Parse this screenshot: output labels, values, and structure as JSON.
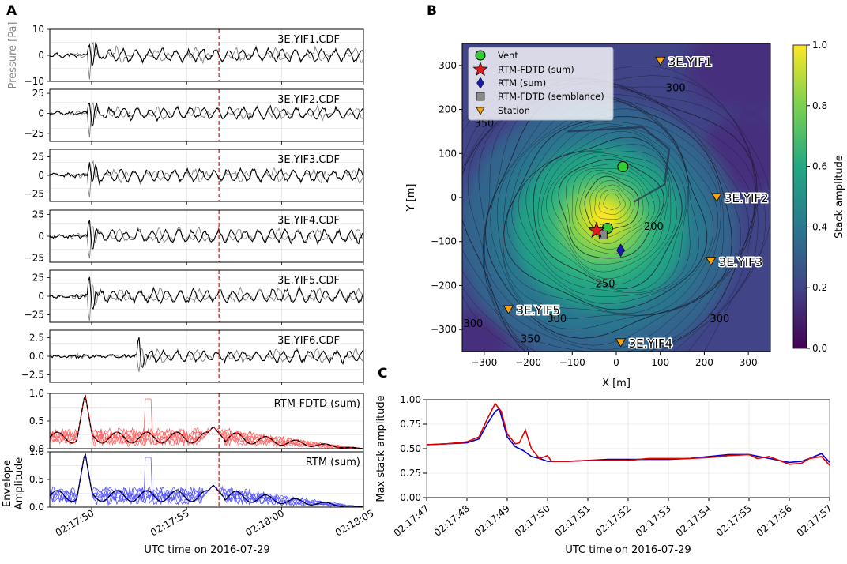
{
  "figure": {
    "panel_labels": [
      "A",
      "B",
      "C"
    ],
    "colors": {
      "black": "#000000",
      "gray": "#808080",
      "red_line": "#e00000",
      "light_red": "#ff6666",
      "blue_line": "#0000cc",
      "light_blue": "#5a5aff",
      "dashed_red": "#d00000",
      "vent": "#33cc33",
      "star": "#e41a1c",
      "diamond": "#1a1aaa",
      "square": "#888888",
      "station": "#f5a30f"
    }
  },
  "chart_data": [
    {
      "id": "A-waveforms",
      "type": "line",
      "panel": "A",
      "xlabel": "UTC time on 2016-07-29",
      "ylabel_top": "Pressure [Pa]",
      "ylabel_bottom": "Envelope\nAmplitude",
      "x_range_s": [
        0,
        16.5
      ],
      "x_ticks": [
        {
          "t": 2.2,
          "label": "02:17:50"
        },
        {
          "t": 7.2,
          "label": "02:17:55"
        },
        {
          "t": 12.2,
          "label": "02:18:00"
        },
        {
          "t": 17.2,
          "label": "02:18:05"
        }
      ],
      "dashed_time_s": 8.9,
      "traces": [
        {
          "name": "3E.YIF1.CDF",
          "ylim": [
            -10,
            10
          ],
          "yticks": [
            "10",
            "0",
            "−10"
          ],
          "peak": 9,
          "seed": 11,
          "onset": 2.0
        },
        {
          "name": "3E.YIF2.CDF",
          "ylim": [
            -35,
            30
          ],
          "yticks": [
            "25",
            "0",
            "−25"
          ],
          "peak": 28,
          "seed": 23,
          "onset": 2.0
        },
        {
          "name": "3E.YIF3.CDF",
          "ylim": [
            -35,
            35
          ],
          "yticks": [
            "25",
            "0",
            "−25"
          ],
          "peak": 30,
          "seed": 37,
          "onset": 2.0
        },
        {
          "name": "3E.YIF4.CDF",
          "ylim": [
            -30,
            30
          ],
          "yticks": [
            "25",
            "0",
            "−25"
          ],
          "peak": 26,
          "seed": 41,
          "onset": 2.0
        },
        {
          "name": "3E.YIF5.CDF",
          "ylim": [
            -35,
            35
          ],
          "yticks": [
            "25",
            "0",
            "−25"
          ],
          "peak": 32,
          "seed": 53,
          "onset": 2.0
        },
        {
          "name": "3E.YIF6.CDF",
          "ylim": [
            -3.5,
            3.5
          ],
          "yticks": [
            "2.5",
            "0.0",
            "−2.5"
          ],
          "peak": 2.8,
          "seed": 67,
          "onset": 4.6
        }
      ],
      "envelopes": [
        {
          "name": "RTM-FDTD (sum)",
          "ylim": [
            0,
            1.0
          ],
          "yticks": [
            "1.0",
            "0.5",
            "0.0"
          ],
          "color": "red"
        },
        {
          "name": "RTM (sum)",
          "ylim": [
            0,
            1.0
          ],
          "yticks": [
            "1.0",
            "0.5",
            "0.0"
          ],
          "color": "blue"
        }
      ]
    },
    {
      "id": "B-map",
      "type": "heatmap",
      "panel": "B",
      "xlabel": "X [m]",
      "ylabel": "Y [m]",
      "xlim": [
        -350,
        350
      ],
      "ylim": [
        -350,
        350
      ],
      "x_ticks": [
        "−300",
        "−200",
        "−100",
        "0",
        "100",
        "200",
        "300"
      ],
      "y_ticks": [
        "300",
        "200",
        "100",
        "0",
        "−100",
        "−200",
        "−300"
      ],
      "colorbar": {
        "label": "Stack amplitude",
        "range": [
          0.0,
          1.0
        ],
        "ticks": [
          "1.0",
          "0.8",
          "0.6",
          "0.4",
          "0.2",
          "0.0"
        ]
      },
      "legend": [
        "Vent",
        "RTM-FDTD (sum)",
        "RTM (sum)",
        "RTM-FDTD (semblance)",
        "Station"
      ],
      "markers": {
        "vent": [
          {
            "x": 15,
            "y": 70
          },
          {
            "x": -20,
            "y": -70
          }
        ],
        "rtm_fdtd_sum": {
          "x": -45,
          "y": -75
        },
        "rtm_sum": {
          "x": 10,
          "y": -120
        },
        "rtm_fdtd_semblance": {
          "x": -30,
          "y": -85
        }
      },
      "stations": [
        {
          "name": "3E.YIF1",
          "x": 100,
          "y": 310
        },
        {
          "name": "3E.YIF2",
          "x": 228,
          "y": 0
        },
        {
          "name": "3E.YIF3",
          "x": 215,
          "y": -145
        },
        {
          "name": "3E.YIF4",
          "x": 10,
          "y": -330
        },
        {
          "name": "3E.YIF5",
          "x": -245,
          "y": -255
        }
      ],
      "contour_labels": [
        {
          "text": "300",
          "x": 135,
          "y": 250
        },
        {
          "text": "350",
          "x": -300,
          "y": 170
        },
        {
          "text": "200",
          "x": 85,
          "y": -65
        },
        {
          "text": "250",
          "x": -25,
          "y": -195
        },
        {
          "text": "300",
          "x": -135,
          "y": -275
        },
        {
          "text": "350",
          "x": -195,
          "y": -320
        },
        {
          "text": "300",
          "x": 235,
          "y": -275
        },
        {
          "text": "300",
          "x": -325,
          "y": -285
        }
      ],
      "source_max": {
        "x": -40,
        "y": -80
      }
    },
    {
      "id": "C-maxstack",
      "type": "line",
      "panel": "C",
      "xlabel": "UTC time on 2016-07-29",
      "ylabel": "Max stack amplitude",
      "ylim": [
        0.0,
        1.0
      ],
      "yticks": [
        "1.00",
        "0.75",
        "0.50",
        "0.25",
        "0.00"
      ],
      "x_ticks": [
        "02:17:47",
        "02:17:48",
        "02:17:49",
        "02:17:50",
        "02:17:51",
        "02:17:52",
        "02:17:53",
        "02:17:54",
        "02:17:55",
        "02:17:56",
        "02:17:57"
      ],
      "series": [
        {
          "name": "red",
          "color": "#e00000",
          "points": [
            [
              0,
              0.54
            ],
            [
              0.5,
              0.55
            ],
            [
              1.0,
              0.57
            ],
            [
              1.3,
              0.62
            ],
            [
              1.5,
              0.8
            ],
            [
              1.7,
              0.96
            ],
            [
              1.85,
              0.88
            ],
            [
              2.0,
              0.65
            ],
            [
              2.2,
              0.55
            ],
            [
              2.3,
              0.56
            ],
            [
              2.45,
              0.69
            ],
            [
              2.6,
              0.5
            ],
            [
              2.8,
              0.4
            ],
            [
              3.0,
              0.43
            ],
            [
              3.1,
              0.37
            ],
            [
              3.5,
              0.37
            ],
            [
              4.0,
              0.38
            ],
            [
              4.5,
              0.38
            ],
            [
              5.0,
              0.38
            ],
            [
              5.5,
              0.4
            ],
            [
              6.0,
              0.4
            ],
            [
              6.5,
              0.4
            ],
            [
              7.0,
              0.41
            ],
            [
              7.5,
              0.43
            ],
            [
              8.0,
              0.44
            ],
            [
              8.2,
              0.4
            ],
            [
              8.5,
              0.42
            ],
            [
              9.0,
              0.34
            ],
            [
              9.3,
              0.35
            ],
            [
              9.5,
              0.4
            ],
            [
              9.8,
              0.42
            ],
            [
              10.0,
              0.33
            ]
          ]
        },
        {
          "name": "blue",
          "color": "#0000cc",
          "points": [
            [
              0,
              0.54
            ],
            [
              0.5,
              0.55
            ],
            [
              1.0,
              0.56
            ],
            [
              1.3,
              0.6
            ],
            [
              1.5,
              0.75
            ],
            [
              1.7,
              0.88
            ],
            [
              1.8,
              0.91
            ],
            [
              2.0,
              0.62
            ],
            [
              2.2,
              0.52
            ],
            [
              2.4,
              0.48
            ],
            [
              2.6,
              0.42
            ],
            [
              2.8,
              0.4
            ],
            [
              3.0,
              0.37
            ],
            [
              3.5,
              0.37
            ],
            [
              4.0,
              0.38
            ],
            [
              4.5,
              0.39
            ],
            [
              5.0,
              0.39
            ],
            [
              5.5,
              0.39
            ],
            [
              6.0,
              0.39
            ],
            [
              6.5,
              0.4
            ],
            [
              7.0,
              0.42
            ],
            [
              7.5,
              0.44
            ],
            [
              8.0,
              0.44
            ],
            [
              8.5,
              0.4
            ],
            [
              9.0,
              0.36
            ],
            [
              9.3,
              0.37
            ],
            [
              9.5,
              0.4
            ],
            [
              9.8,
              0.45
            ],
            [
              10.0,
              0.36
            ]
          ]
        }
      ]
    }
  ]
}
